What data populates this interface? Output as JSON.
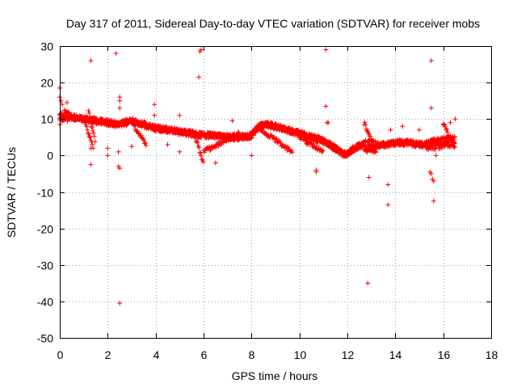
{
  "chart_data": {
    "type": "scatter",
    "title": "Day 317 of 2011, Sidereal Day-to-day VTEC variation (SDTVAR) for receiver mobs",
    "xlabel": "GPS time / hours",
    "ylabel": "SDTVAR / TECUs",
    "xlim": [
      0,
      18
    ],
    "ylim": [
      -50,
      30
    ],
    "xticks": [
      0,
      2,
      4,
      6,
      8,
      10,
      12,
      14,
      16,
      18
    ],
    "yticks": [
      -50,
      -40,
      -30,
      -20,
      -10,
      0,
      10,
      20,
      30
    ],
    "grid": true,
    "marker": "+",
    "color": "#ff0000",
    "series": [
      {
        "name": "SDTVAR",
        "trend": {
          "x": [
            0.0,
            0.2,
            0.5,
            1.0,
            1.5,
            2.0,
            2.5,
            3.0,
            3.5,
            4.0,
            4.5,
            5.0,
            5.5,
            6.0,
            6.5,
            7.0,
            7.5,
            8.0,
            8.3,
            8.6,
            9.0,
            9.5,
            10.0,
            10.5,
            11.0,
            11.5,
            11.8,
            12.0,
            12.3,
            12.6,
            13.0,
            13.5,
            14.0,
            14.5,
            15.0,
            15.5,
            16.0,
            16.5
          ],
          "y": [
            10.0,
            11.0,
            10.5,
            10.0,
            9.5,
            9.0,
            8.5,
            9.5,
            8.5,
            7.5,
            7.0,
            6.5,
            6.0,
            5.5,
            5.5,
            5.0,
            5.0,
            5.5,
            8.0,
            8.5,
            8.0,
            7.0,
            6.0,
            5.0,
            4.0,
            2.0,
            0.5,
            0.5,
            2.0,
            3.0,
            2.5,
            3.0,
            3.5,
            3.5,
            3.0,
            3.0,
            3.5,
            4.0
          ]
        },
        "outliers": [
          [
            0.0,
            18.5
          ],
          [
            0.0,
            16.0
          ],
          [
            0.05,
            15.0
          ],
          [
            0.1,
            14.0
          ],
          [
            0.3,
            14.5
          ],
          [
            1.3,
            26.0
          ],
          [
            1.3,
            -2.5
          ],
          [
            1.3,
            2.0
          ],
          [
            2.0,
            2.0
          ],
          [
            2.0,
            0.0
          ],
          [
            2.35,
            28.0
          ],
          [
            2.5,
            16.0
          ],
          [
            2.5,
            15.0
          ],
          [
            2.5,
            13.0
          ],
          [
            2.45,
            -3.0
          ],
          [
            2.5,
            -3.5
          ],
          [
            2.5,
            -40.5
          ],
          [
            2.45,
            1.0
          ],
          [
            3.0,
            2.5
          ],
          [
            3.95,
            14.0
          ],
          [
            3.95,
            11.0
          ],
          [
            4.5,
            3.0
          ],
          [
            5.0,
            11.0
          ],
          [
            5.0,
            1.0
          ],
          [
            5.8,
            21.5
          ],
          [
            5.85,
            28.5
          ],
          [
            5.9,
            29.0
          ],
          [
            6.5,
            -2.0
          ],
          [
            7.2,
            9.5
          ],
          [
            8.0,
            0.0
          ],
          [
            10.7,
            -4.0
          ],
          [
            10.7,
            -4.5
          ],
          [
            11.1,
            29.0
          ],
          [
            11.1,
            13.5
          ],
          [
            11.15,
            9.0
          ],
          [
            11.2,
            9.0
          ],
          [
            12.9,
            -6.0
          ],
          [
            12.85,
            -35.0
          ],
          [
            13.7,
            -8.0
          ],
          [
            13.7,
            -13.5
          ],
          [
            13.8,
            7.0
          ],
          [
            14.3,
            8.0
          ],
          [
            15.0,
            7.0
          ],
          [
            15.5,
            26.0
          ],
          [
            15.5,
            13.0
          ],
          [
            15.45,
            -4.5
          ],
          [
            15.5,
            -5.0
          ],
          [
            15.55,
            -6.5
          ],
          [
            15.6,
            -7.0
          ],
          [
            15.6,
            -12.5
          ],
          [
            15.7,
            0.0
          ],
          [
            16.3,
            9.0
          ],
          [
            16.5,
            10.0
          ]
        ]
      }
    ]
  }
}
